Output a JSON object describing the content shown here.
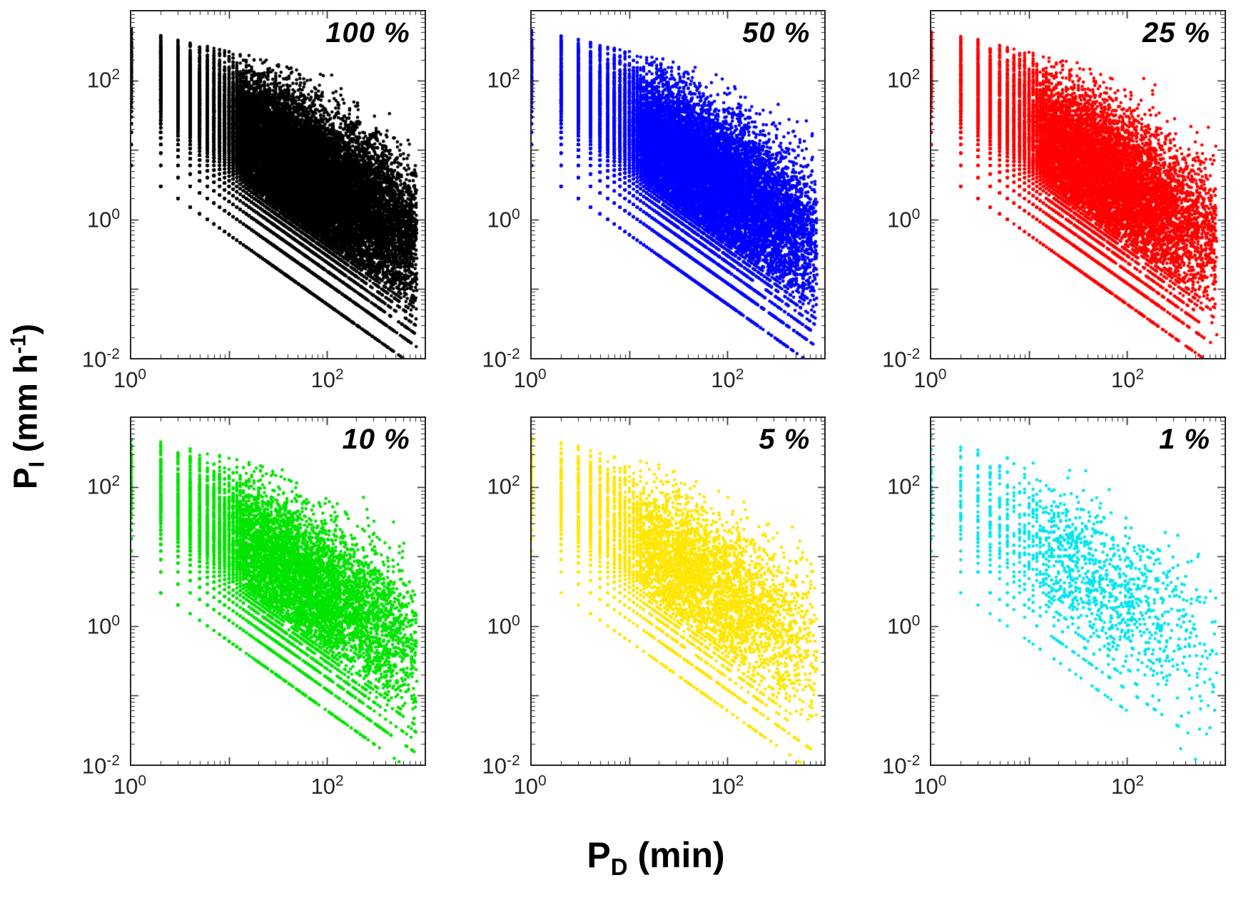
{
  "figure": {
    "background": "#ffffff",
    "axis_color": "#262626",
    "tick_label_color": "#262626"
  },
  "labels": {
    "x_base": "P",
    "x_sub": "D",
    "x_rest": " (min)",
    "y_base": "P",
    "y_sub": "I",
    "y_mid": " (mm h",
    "y_sup": "-1",
    "y_rest": ")"
  },
  "chart_data": {
    "type": "scatter",
    "layout": {
      "rows": 2,
      "cols": 3
    },
    "xscale": "log",
    "yscale": "log",
    "xlim": [
      1,
      1000
    ],
    "ylim": [
      0.01,
      1000
    ],
    "xlabel": "P_D (min)",
    "ylabel": "P_I (mm h^-1)",
    "x_ticks": {
      "base": "10",
      "exponents": [
        0,
        2
      ]
    },
    "y_ticks": {
      "base": "10",
      "exponents": [
        -2,
        0,
        2
      ]
    },
    "minor_ticks": true,
    "grid": false,
    "legend": "none",
    "panels": [
      {
        "id": "100",
        "label": "100 %",
        "color": "#000000",
        "points": 26000,
        "seed": 101
      },
      {
        "id": "50",
        "label": "50 %",
        "color": "#0000ff",
        "points": 18000,
        "seed": 202
      },
      {
        "id": "25",
        "label": "25 %",
        "color": "#ff0000",
        "points": 13000,
        "seed": 303
      },
      {
        "id": "10",
        "label": "10 %",
        "color": "#00e400",
        "points": 8500,
        "seed": 404
      },
      {
        "id": "5",
        "label": "5 %",
        "color": "#ffe600",
        "points": 5200,
        "seed": 505
      },
      {
        "id": "1",
        "label": "1 %",
        "color": "#00e5ee",
        "points": 1500,
        "seed": 606
      }
    ],
    "point_cloud_model": {
      "logD": {
        "mean": 1.55,
        "sd": 0.75,
        "max": 2.92
      },
      "depth_log10_mm": {
        "base": 0.3,
        "slope_per_logD": 0.2,
        "sd": 0.5
      },
      "low_depth_fraction": 0.13,
      "low_depth_log10_range": [
        -1.0,
        0.2
      ],
      "depth_quantum_mm": 0.1,
      "duration_quantum_min": 1,
      "intensity_log10_cap": {
        "a": 2.75,
        "b": 0.32,
        "depth_term": 4.25
      },
      "marker_radius_px": 2.3
    }
  }
}
